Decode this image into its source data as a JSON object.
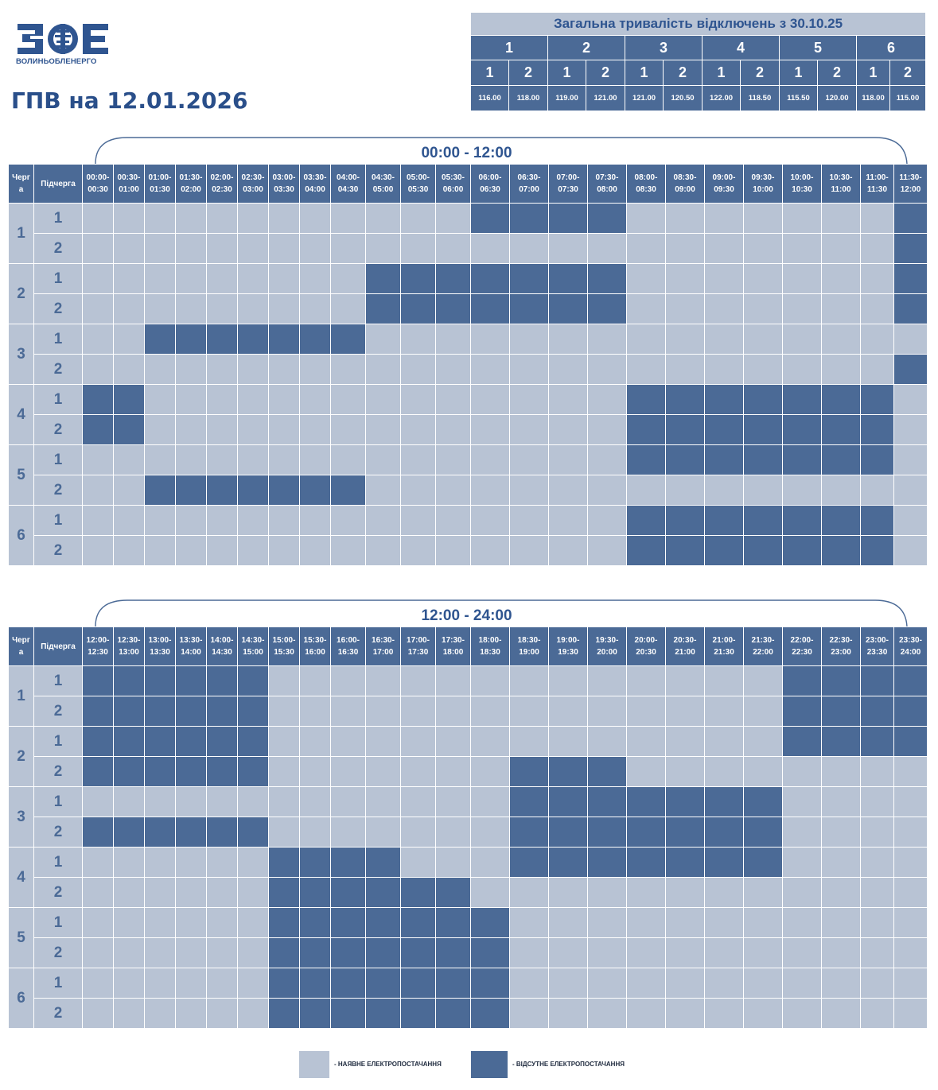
{
  "logo": {
    "letters": "ЗОЕ",
    "caption": "ВОЛИНЬОБЛЕНЕРГО"
  },
  "title": "ГПВ на 12.01.2026",
  "summary": {
    "title": "Загальна тривалість відключень з 30.10.25",
    "queues": [
      "1",
      "2",
      "3",
      "4",
      "5",
      "6"
    ],
    "subqueues": [
      "1",
      "2",
      "1",
      "2",
      "1",
      "2",
      "1",
      "2",
      "1",
      "2",
      "1",
      "2"
    ],
    "values": [
      "116.00",
      "118.00",
      "119.00",
      "121.00",
      "121.00",
      "120.50",
      "122.00",
      "118.50",
      "115.50",
      "120.00",
      "118.00",
      "115.00"
    ]
  },
  "blocks": [
    {
      "range": "00:00 - 12:00",
      "queue_header": "Черг а",
      "subqueue_header": "Підчерга",
      "times": [
        [
          "00:00-",
          "00:30"
        ],
        [
          "00:30-",
          "01:00"
        ],
        [
          "01:00-",
          "01:30"
        ],
        [
          "01:30-",
          "02:00"
        ],
        [
          "02:00-",
          "02:30"
        ],
        [
          "02:30-",
          "03:00"
        ],
        [
          "03:00-",
          "03:30"
        ],
        [
          "03:30-",
          "04:00"
        ],
        [
          "04:00-",
          "04:30"
        ],
        [
          "04:30-",
          "05:00"
        ],
        [
          "05:00-",
          "05:30"
        ],
        [
          "05:30-",
          "06:00"
        ],
        [
          "06:00-",
          "06:30"
        ],
        [
          "06:30-",
          "07:00"
        ],
        [
          "07:00-",
          "07:30"
        ],
        [
          "07:30-",
          "08:00"
        ],
        [
          "08:00-",
          "08:30"
        ],
        [
          "08:30-",
          "09:00"
        ],
        [
          "09:00-",
          "09:30"
        ],
        [
          "09:30-",
          "10:00"
        ],
        [
          "10:00-",
          "10:30"
        ],
        [
          "10:30-",
          "11:00"
        ],
        [
          "11:00-",
          "11:30"
        ],
        [
          "11:30-",
          "12:00"
        ]
      ],
      "rows": [
        {
          "queue": "1",
          "sub": "1",
          "cells": "000000000000111100000001"
        },
        {
          "queue": "1",
          "sub": "2",
          "cells": "000000000000000000000001"
        },
        {
          "queue": "2",
          "sub": "1",
          "cells": "000000000111111100000001"
        },
        {
          "queue": "2",
          "sub": "2",
          "cells": "000000000111111100000001"
        },
        {
          "queue": "3",
          "sub": "1",
          "cells": "001111111000000000000000"
        },
        {
          "queue": "3",
          "sub": "2",
          "cells": "000000000000000000000001"
        },
        {
          "queue": "4",
          "sub": "1",
          "cells": "110000000000000011111110"
        },
        {
          "queue": "4",
          "sub": "2",
          "cells": "110000000000000011111110"
        },
        {
          "queue": "5",
          "sub": "1",
          "cells": "000000000000000011111110"
        },
        {
          "queue": "5",
          "sub": "2",
          "cells": "001111111000000000000000"
        },
        {
          "queue": "6",
          "sub": "1",
          "cells": "000000000000000011111110"
        },
        {
          "queue": "6",
          "sub": "2",
          "cells": "000000000000000011111110"
        }
      ]
    },
    {
      "range": "12:00 - 24:00",
      "queue_header": "Черг а",
      "subqueue_header": "Підчерга",
      "times": [
        [
          "12:00-",
          "12:30"
        ],
        [
          "12:30-",
          "13:00"
        ],
        [
          "13:00-",
          "13:30"
        ],
        [
          "13:30-",
          "14:00"
        ],
        [
          "14:00-",
          "14:30"
        ],
        [
          "14:30-",
          "15:00"
        ],
        [
          "15:00-",
          "15:30"
        ],
        [
          "15:30-",
          "16:00"
        ],
        [
          "16:00-",
          "16:30"
        ],
        [
          "16:30-",
          "17:00"
        ],
        [
          "17:00-",
          "17:30"
        ],
        [
          "17:30-",
          "18:00"
        ],
        [
          "18:00-",
          "18:30"
        ],
        [
          "18:30-",
          "19:00"
        ],
        [
          "19:00-",
          "19:30"
        ],
        [
          "19:30-",
          "20:00"
        ],
        [
          "20:00-",
          "20:30"
        ],
        [
          "20:30-",
          "21:00"
        ],
        [
          "21:00-",
          "21:30"
        ],
        [
          "21:30-",
          "22:00"
        ],
        [
          "22:00-",
          "22:30"
        ],
        [
          "22:30-",
          "23:00"
        ],
        [
          "23:00-",
          "23:30"
        ],
        [
          "23:30-",
          "24:00"
        ]
      ],
      "rows": [
        {
          "queue": "1",
          "sub": "1",
          "cells": "111111000000000000001111"
        },
        {
          "queue": "1",
          "sub": "2",
          "cells": "111111000000000000001111"
        },
        {
          "queue": "2",
          "sub": "1",
          "cells": "111111000000000000001111"
        },
        {
          "queue": "2",
          "sub": "2",
          "cells": "111111000000011100000000"
        },
        {
          "queue": "3",
          "sub": "1",
          "cells": "000000000000011111110000"
        },
        {
          "queue": "3",
          "sub": "2",
          "cells": "111111000000011111110000"
        },
        {
          "queue": "4",
          "sub": "1",
          "cells": "000000111100011111110000"
        },
        {
          "queue": "4",
          "sub": "2",
          "cells": "000000111111000000000000"
        },
        {
          "queue": "5",
          "sub": "1",
          "cells": "000000111111100000000000"
        },
        {
          "queue": "5",
          "sub": "2",
          "cells": "000000111111100000000000"
        },
        {
          "queue": "6",
          "sub": "1",
          "cells": "000000111111100000000000"
        },
        {
          "queue": "6",
          "sub": "2",
          "cells": "000000111111100000000000"
        }
      ]
    }
  ],
  "legend": {
    "available": "- НАЯВНЕ ЕЛЕКТРОПОСТАЧАННЯ",
    "absent": "- ВІДСУТНЕ ЕЛЕКТРОПОСТАЧАННЯ"
  },
  "colors": {
    "available": "#b8c3d4",
    "absent": "#4b6a96",
    "title": "#2a4f8a"
  }
}
